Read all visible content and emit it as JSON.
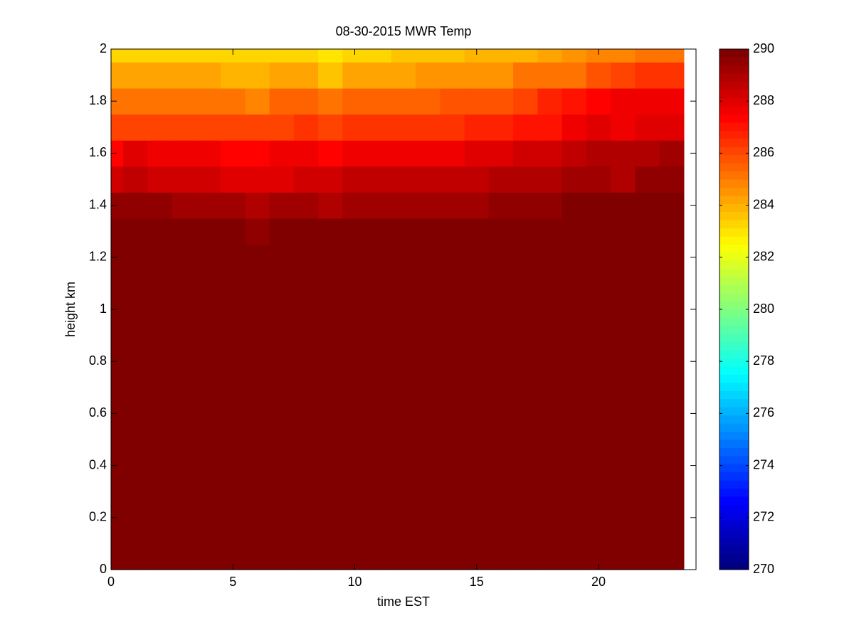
{
  "chart_data": {
    "type": "heatmap",
    "title": "08-30-2015 MWR Temp",
    "x_label": "time EST",
    "y_label": "height km",
    "x_edges": [
      0,
      0.5,
      1.5,
      2.5,
      3.5,
      4.5,
      5.5,
      6.5,
      7.5,
      8.5,
      9.5,
      10.5,
      11.5,
      12.5,
      13.5,
      14.5,
      15.5,
      16.5,
      17.5,
      18.5,
      19.5,
      20.5,
      21.5,
      22.5,
      23.5
    ],
    "y_edges": [
      0,
      1.25,
      1.35,
      1.45,
      1.55,
      1.65,
      1.75,
      1.85,
      1.95,
      2
    ],
    "z": [
      [
        291,
        291,
        291,
        291,
        291,
        291,
        291,
        291,
        291,
        291,
        291,
        291,
        291,
        291,
        291,
        291,
        291,
        291,
        291,
        291,
        291,
        291,
        291,
        291
      ],
      [
        290.2,
        290.2,
        290.2,
        290.2,
        290.2,
        290.2,
        289.6,
        290.2,
        290.2,
        290.2,
        290.2,
        290.2,
        290.2,
        290.2,
        290.2,
        290.2,
        290.2,
        290.2,
        290.2,
        290.2,
        290.2,
        290.2,
        290.2,
        290.2
      ],
      [
        289.4,
        289.4,
        289.4,
        289.3,
        289.3,
        289.3,
        288.9,
        289.2,
        289.2,
        288.8,
        289.1,
        289.1,
        289.1,
        289.1,
        289.1,
        289.1,
        289.4,
        289.4,
        289.4,
        290.2,
        290.2,
        290.2,
        290.2,
        290.2
      ],
      [
        288.3,
        288.7,
        288.4,
        288.4,
        288.4,
        288.1,
        288.1,
        288.1,
        288.4,
        288.2,
        288.6,
        288.6,
        288.6,
        288.6,
        288.6,
        288.6,
        288.8,
        288.8,
        289,
        289.2,
        289.2,
        289,
        289.6,
        289.6
      ],
      [
        287.3,
        287.9,
        287.6,
        287.6,
        287.6,
        287.2,
        287.2,
        287.7,
        287.7,
        287.4,
        287.6,
        287.6,
        287.6,
        287.6,
        287.6,
        287.9,
        287.9,
        288.3,
        288.3,
        288.6,
        288.8,
        289,
        289,
        289.3
      ],
      [
        286.2,
        286.2,
        286.2,
        286.2,
        286.2,
        286,
        286,
        286,
        286.4,
        286.2,
        286.3,
        286.3,
        286.3,
        286.3,
        286.3,
        286.7,
        286.7,
        287,
        287,
        287.5,
        287.9,
        287.6,
        288.1,
        288.1
      ],
      [
        285.3,
        285.3,
        285.3,
        285.3,
        285.3,
        285.3,
        284.8,
        285.4,
        285.4,
        285,
        285.5,
        285.5,
        285.5,
        285.5,
        285.8,
        285.8,
        285.8,
        286.2,
        286.6,
        286.9,
        287.2,
        287.5,
        287.7,
        287.7
      ],
      [
        284.3,
        284.3,
        284.3,
        284.3,
        284.3,
        283.9,
        283.9,
        284.2,
        284.2,
        283.7,
        284.2,
        284.2,
        284.2,
        284.5,
        284.5,
        284.5,
        284.5,
        285,
        285,
        285.3,
        285.7,
        286,
        286.3,
        286.3
      ],
      [
        283.4,
        283.4,
        283.4,
        283.4,
        283.4,
        283.4,
        283.4,
        283.4,
        283.4,
        282.9,
        283.3,
        283.3,
        283.7,
        283.7,
        283.7,
        283.9,
        283.9,
        283.9,
        284.3,
        284.4,
        284.8,
        284.9,
        285.3,
        285.3
      ]
    ],
    "colormap": "jet",
    "clim": [
      270,
      290
    ],
    "colorbar_ticks": [
      270,
      272,
      274,
      276,
      278,
      280,
      282,
      284,
      286,
      288,
      290
    ],
    "xlim": [
      0,
      24
    ],
    "xticks": [
      0,
      5,
      10,
      15,
      20
    ],
    "ylim": [
      0,
      2
    ],
    "yticks": [
      0,
      0.2,
      0.4,
      0.6,
      0.8,
      1,
      1.2,
      1.4,
      1.6,
      1.8,
      2
    ]
  }
}
